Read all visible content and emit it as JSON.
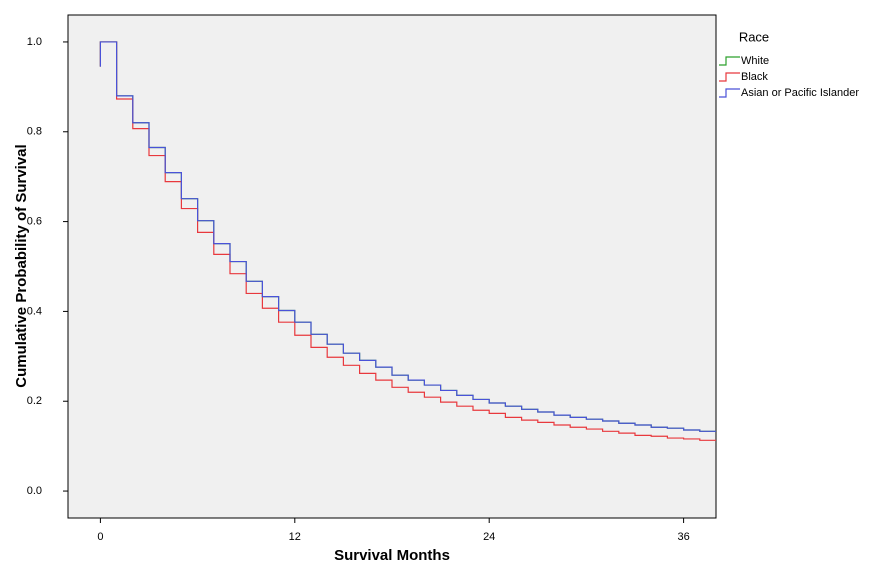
{
  "chart_data": {
    "type": "step",
    "x_label": "Survival Months",
    "y_label": "Cumulative Probability of Survival",
    "legend_title": "Race",
    "legend": "right",
    "xlim": [
      -2,
      38
    ],
    "xticks": [
      0,
      12,
      24,
      36
    ],
    "ylim": [
      -0.06,
      1.06
    ],
    "yticks": [
      {
        "value": 0,
        "label": "0.0"
      },
      0.2,
      0.4,
      0.6,
      0.8,
      {
        "value": 1,
        "label": "1.0"
      }
    ],
    "x": [
      0,
      0,
      1,
      2,
      3,
      4,
      5,
      6,
      7,
      8,
      9,
      10,
      11,
      12,
      13,
      14,
      15,
      16,
      17,
      18,
      19,
      20,
      21,
      22,
      23,
      24,
      25,
      26,
      27,
      28,
      29,
      30,
      31,
      32,
      33,
      34,
      35,
      36,
      37
    ],
    "series": [
      {
        "name": "White",
        "color": "#2ca02c",
        "values": [
          0.945,
          1.0,
          0.88,
          0.82,
          0.765,
          0.709,
          0.651,
          0.602,
          0.551,
          0.511,
          0.467,
          0.433,
          0.402,
          0.376,
          0.349,
          0.327,
          0.307,
          0.291,
          0.276,
          0.258,
          0.247,
          0.236,
          0.224,
          0.213,
          0.204,
          0.196,
          0.189,
          0.182,
          0.176,
          0.169,
          0.164,
          0.16,
          0.156,
          0.151,
          0.147,
          0.142,
          0.14,
          0.136,
          0.133
        ]
      },
      {
        "name": "Black",
        "color": "#e8383d",
        "values": [
          0.945,
          1.0,
          0.873,
          0.807,
          0.747,
          0.689,
          0.629,
          0.576,
          0.527,
          0.484,
          0.44,
          0.407,
          0.376,
          0.347,
          0.32,
          0.298,
          0.28,
          0.262,
          0.247,
          0.231,
          0.22,
          0.209,
          0.198,
          0.189,
          0.18,
          0.173,
          0.164,
          0.158,
          0.153,
          0.147,
          0.142,
          0.138,
          0.133,
          0.129,
          0.124,
          0.122,
          0.118,
          0.116,
          0.113
        ]
      },
      {
        "name": "Asian or Pacific Islander",
        "color": "#4a52d8",
        "values": [
          0.945,
          1.0,
          0.88,
          0.82,
          0.765,
          0.709,
          0.651,
          0.602,
          0.551,
          0.511,
          0.467,
          0.433,
          0.402,
          0.376,
          0.349,
          0.327,
          0.307,
          0.291,
          0.276,
          0.258,
          0.247,
          0.236,
          0.224,
          0.213,
          0.204,
          0.196,
          0.189,
          0.182,
          0.176,
          0.169,
          0.164,
          0.16,
          0.156,
          0.151,
          0.147,
          0.142,
          0.14,
          0.136,
          0.133
        ]
      }
    ]
  }
}
